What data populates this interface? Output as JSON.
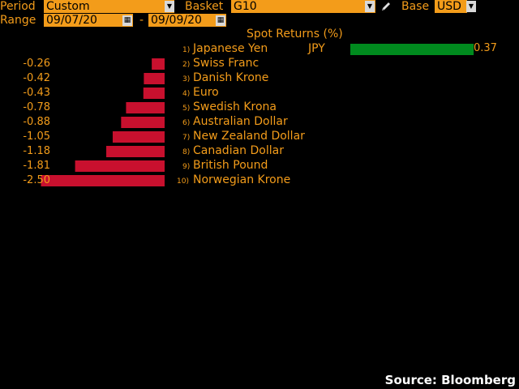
{
  "controls": {
    "period_label": "Period",
    "period_value": "Custom",
    "basket_label": "Basket",
    "basket_value": "G10",
    "base_label": "Base",
    "base_value": "USD",
    "range_label": "Range",
    "range_start": "09/07/20",
    "range_sep": "-",
    "range_end": "09/09/20"
  },
  "chart_data": {
    "type": "bar",
    "title": "Spot Returns (%)",
    "categories": [
      "Japanese Yen",
      "Swiss Franc",
      "Danish Krone",
      "Euro",
      "Swedish Krona",
      "Australian Dollar",
      "New Zealand Dollar",
      "Canadian Dollar",
      "British Pound",
      "Norwegian Krone"
    ],
    "ranks": [
      "1)",
      "2)",
      "3)",
      "4)",
      "5)",
      "6)",
      "7)",
      "8)",
      "9)",
      "10)"
    ],
    "values": [
      0.37,
      -0.26,
      -0.42,
      -0.43,
      -0.78,
      -0.88,
      -1.05,
      -1.18,
      -1.81,
      -2.5
    ],
    "value_labels": [
      "0.37",
      "-0.26",
      "-0.42",
      "-0.43",
      "-0.78",
      "-0.88",
      "-1.05",
      "-1.18",
      "-1.81",
      "-2.50"
    ],
    "highlight_code": "JPY",
    "colors": {
      "positive": "#008a1e",
      "negative": "#c8102e"
    }
  },
  "footer": {
    "source": "Source: Bloomberg"
  }
}
